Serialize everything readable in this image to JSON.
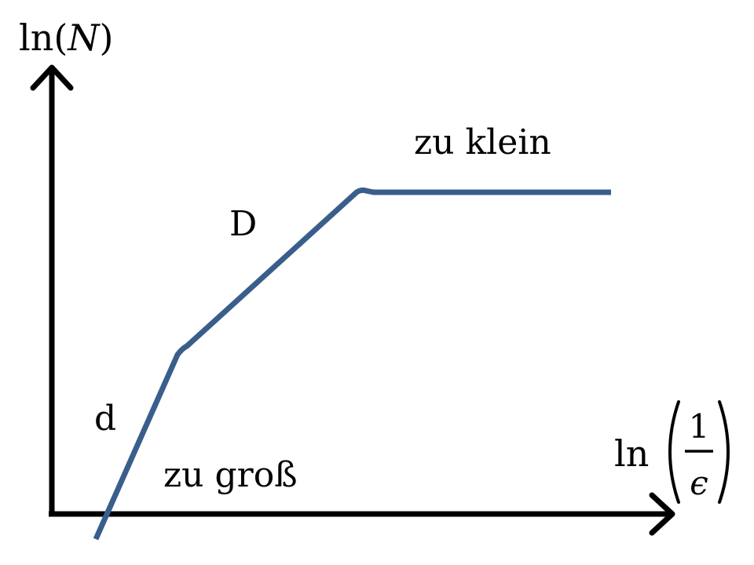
{
  "y_axis": {
    "func": "ln",
    "open": "(",
    "var": "N",
    "close": ")"
  },
  "x_axis": {
    "func": "ln",
    "numerator": "1",
    "denominator": "ϵ"
  },
  "labels": {
    "too_small": "zu klein",
    "big_d": "D",
    "small_d": "d",
    "too_large": "zu groß"
  },
  "colors": {
    "curve": "#3a5e8c",
    "axes": "#000000"
  }
}
